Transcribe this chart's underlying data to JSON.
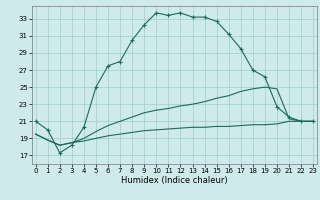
{
  "xlabel": "Humidex (Indice chaleur)",
  "background_color": "#ceeaea",
  "grid_color": "#9ecece",
  "line_color": "#1a6b5a",
  "x_ticks": [
    0,
    1,
    2,
    3,
    4,
    5,
    6,
    7,
    8,
    9,
    10,
    11,
    12,
    13,
    14,
    15,
    16,
    17,
    18,
    19,
    20,
    21,
    22,
    23
  ],
  "y_ticks": [
    17,
    19,
    21,
    23,
    25,
    27,
    29,
    31,
    33
  ],
  "ylim": [
    16.0,
    34.5
  ],
  "xlim": [
    -0.3,
    23.3
  ],
  "series1_x": [
    0,
    1,
    2,
    3,
    4,
    5,
    6,
    7,
    8,
    9,
    10,
    11,
    12,
    13,
    14,
    15,
    16,
    17,
    18,
    19,
    20,
    21,
    22,
    23
  ],
  "series1_y": [
    21.0,
    20.0,
    17.3,
    18.2,
    20.3,
    25.0,
    27.5,
    28.0,
    30.5,
    32.3,
    33.7,
    33.4,
    33.7,
    33.2,
    33.2,
    32.7,
    31.2,
    29.5,
    27.0,
    26.2,
    22.7,
    21.5,
    21.0,
    21.0
  ],
  "series2_x": [
    0,
    1,
    2,
    3,
    4,
    5,
    6,
    7,
    8,
    9,
    10,
    11,
    12,
    13,
    14,
    15,
    16,
    17,
    18,
    19,
    20,
    21,
    22,
    23
  ],
  "series2_y": [
    19.5,
    18.8,
    18.2,
    18.5,
    19.0,
    19.8,
    20.5,
    21.0,
    21.5,
    22.0,
    22.3,
    22.5,
    22.8,
    23.0,
    23.3,
    23.7,
    24.0,
    24.5,
    24.8,
    25.0,
    24.8,
    21.3,
    21.0,
    21.0
  ],
  "series3_x": [
    0,
    1,
    2,
    3,
    4,
    5,
    6,
    7,
    8,
    9,
    10,
    11,
    12,
    13,
    14,
    15,
    16,
    17,
    18,
    19,
    20,
    21,
    22,
    23
  ],
  "series3_y": [
    19.5,
    18.8,
    18.2,
    18.5,
    18.7,
    19.0,
    19.3,
    19.5,
    19.7,
    19.9,
    20.0,
    20.1,
    20.2,
    20.3,
    20.3,
    20.4,
    20.4,
    20.5,
    20.6,
    20.6,
    20.7,
    21.0,
    21.0,
    21.0
  ]
}
